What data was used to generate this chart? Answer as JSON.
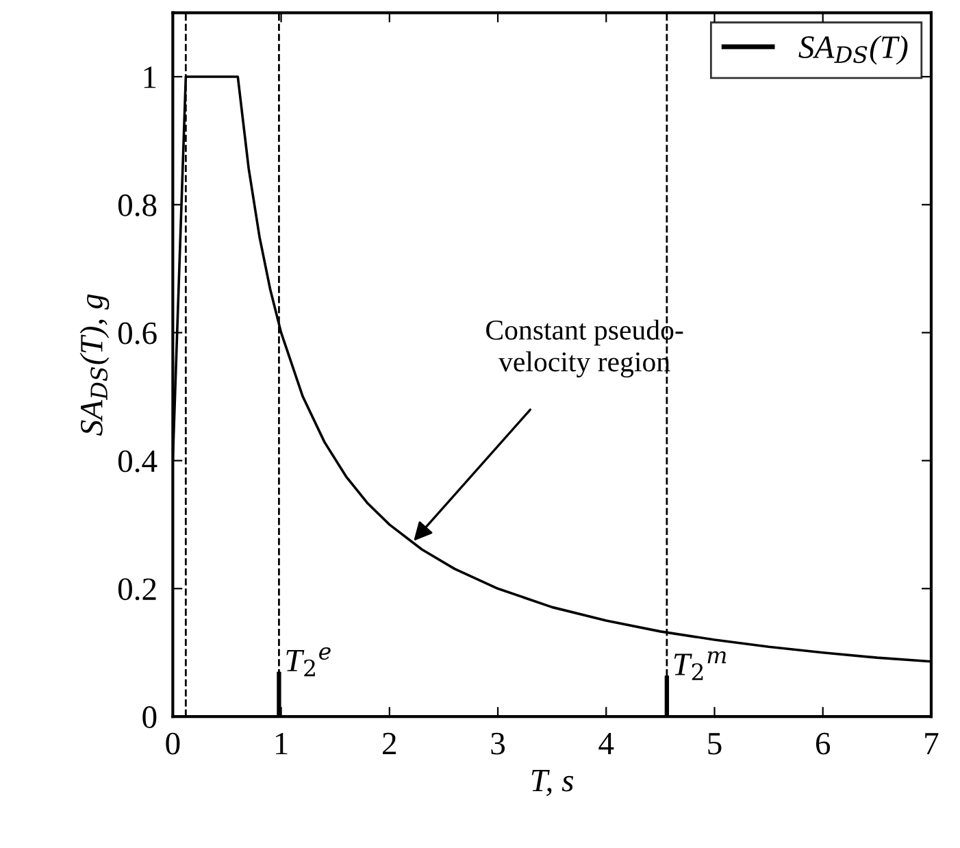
{
  "chart_data": {
    "type": "line",
    "xlabel": "T, s",
    "ylabel": "SA$_{DS}$(T), g",
    "series": [
      {
        "name": "SA$_{DS}$(T)",
        "color": "#000000",
        "x": [
          0,
          0.12,
          0.6,
          0.7,
          0.8,
          0.9,
          1.0,
          1.2,
          1.4,
          1.6,
          1.8,
          2.0,
          2.3,
          2.6,
          3.0,
          3.5,
          4.0,
          4.5,
          5.0,
          5.5,
          6.0,
          6.5,
          7.0
        ],
        "values": [
          0.4,
          1.0,
          1.0,
          0.857,
          0.75,
          0.667,
          0.6,
          0.5,
          0.429,
          0.375,
          0.333,
          0.3,
          0.261,
          0.231,
          0.2,
          0.171,
          0.15,
          0.133,
          0.12,
          0.109,
          0.1,
          0.092,
          0.086
        ]
      },
      {
        "type": "bar",
        "color": "#000000",
        "x": [
          0.98,
          4.56
        ],
        "values": [
          0.07,
          0.064
        ]
      }
    ],
    "ref_lines": [
      {
        "axis": "x",
        "value": 0.12,
        "line_style": "dashed",
        "color": "#000000"
      },
      {
        "axis": "x",
        "value": 0.98,
        "line_style": "dashed",
        "color": "#000000"
      },
      {
        "axis": "x",
        "value": 4.56,
        "line_style": "dashed",
        "color": "#000000"
      }
    ],
    "annotations": [
      {
        "text": "Constant pseudo-\nvelocity region",
        "x": 2.2,
        "y": 0.27
      },
      {
        "text": "T$_{2}$$^{e}$",
        "x": 0.98,
        "y": 0.07
      },
      {
        "text": "T$_{2}$$^{m}$",
        "x": 4.56,
        "y": 0.064
      }
    ],
    "xlim": [
      0,
      7
    ],
    "xticks": [
      0,
      1,
      2,
      3,
      4,
      5,
      6,
      7
    ],
    "ylim": [
      0,
      1.1
    ],
    "yticks": [
      0,
      0.2,
      0.4,
      0.6,
      0.8,
      1
    ],
    "legend": "top right",
    "grid": false
  }
}
